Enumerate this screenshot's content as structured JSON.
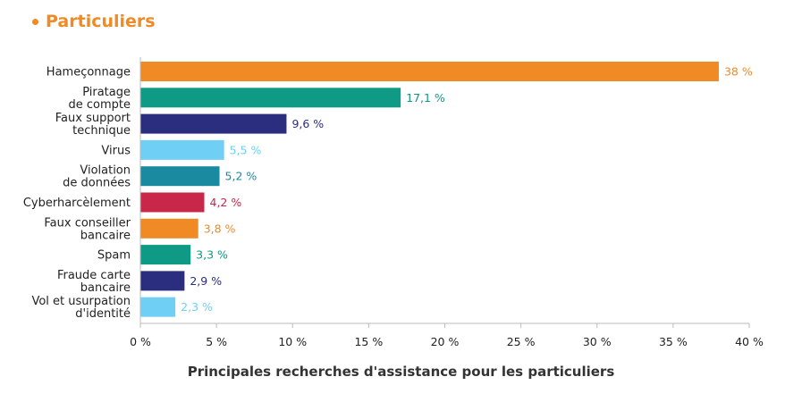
{
  "heading": "Particuliers",
  "chart_data": {
    "type": "bar",
    "orientation": "horizontal",
    "title": "",
    "xlabel": "Principales recherches d'assistance pour les particuliers",
    "ylabel": "",
    "xlim": [
      0,
      40
    ],
    "x_ticks": [
      0,
      5,
      10,
      15,
      20,
      25,
      30,
      35,
      40
    ],
    "x_tick_labels": [
      "0 %",
      "5 %",
      "10 %",
      "15 %",
      "20 %",
      "25 %",
      "30 %",
      "35 %",
      "40 %"
    ],
    "grid": false,
    "legend": "none",
    "categories": [
      [
        "Hameçonnage"
      ],
      [
        "Piratage",
        "de compte"
      ],
      [
        "Faux support",
        "technique"
      ],
      [
        "Virus"
      ],
      [
        "Violation",
        "de données"
      ],
      [
        "Cyberharcèlement"
      ],
      [
        "Faux conseiller",
        "bancaire"
      ],
      [
        "Spam"
      ],
      [
        "Fraude carte",
        "bancaire"
      ],
      [
        "Vol et usurpation",
        "d'identité"
      ]
    ],
    "values": [
      38,
      17.1,
      9.6,
      5.5,
      5.2,
      4.2,
      3.8,
      3.3,
      2.9,
      2.3
    ],
    "value_labels": [
      "38 %",
      "17,1 %",
      "9,6 %",
      "5,5 %",
      "5,2 %",
      "4,2 %",
      "3,8 %",
      "3,3 %",
      "2,9 %",
      "2,3 %"
    ],
    "colors": [
      "#f08a24",
      "#0e9a84",
      "#2b2d7e",
      "#6fcff5",
      "#1a8aa0",
      "#c8274a",
      "#f08a24",
      "#0e9a84",
      "#2b2d7e",
      "#6fcff5"
    ]
  }
}
